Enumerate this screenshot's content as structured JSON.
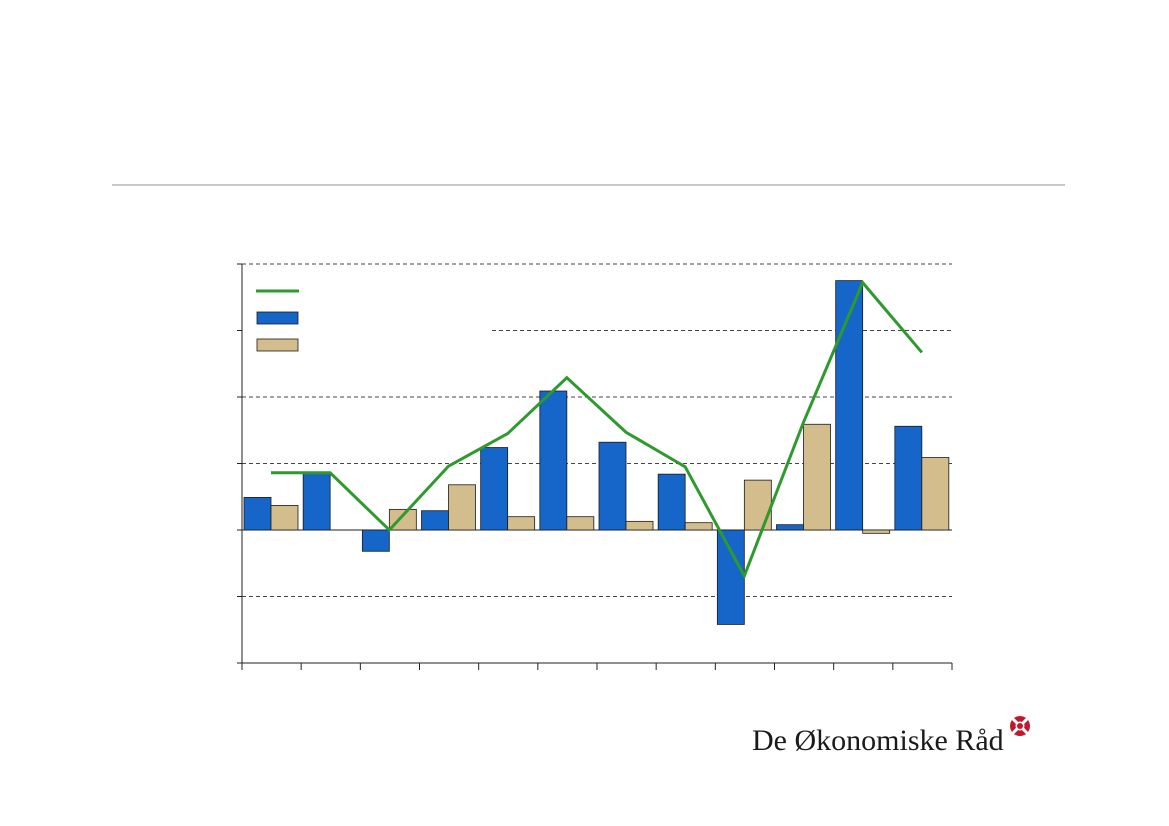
{
  "page": {
    "logo_text": "De Økonomiske Råd",
    "logo_mark": "seal-icon"
  },
  "chart_data": {
    "type": "bar",
    "groups": 12,
    "ylim": [
      -2,
      4
    ],
    "yticks": [
      -2,
      -1,
      0,
      1,
      2,
      3,
      4
    ],
    "grid": "horizontal dashed",
    "legend_placement": "top-left",
    "series": [
      {
        "kind": "line",
        "color": "#2e9a2e",
        "values": [
          0.86,
          0.86,
          0.0,
          0.96,
          1.45,
          2.29,
          1.47,
          0.95,
          -0.69,
          1.62,
          3.72,
          2.67
        ]
      },
      {
        "kind": "bar",
        "color": "#1566c8",
        "values": [
          0.49,
          0.86,
          -0.32,
          0.29,
          1.24,
          2.09,
          1.32,
          0.84,
          -1.42,
          0.08,
          3.75,
          1.56
        ]
      },
      {
        "kind": "bar",
        "color": "#d4bd8c",
        "values": [
          0.37,
          null,
          0.31,
          0.68,
          0.2,
          0.2,
          0.13,
          0.11,
          0.75,
          1.59,
          -0.05,
          1.09
        ]
      }
    ]
  }
}
